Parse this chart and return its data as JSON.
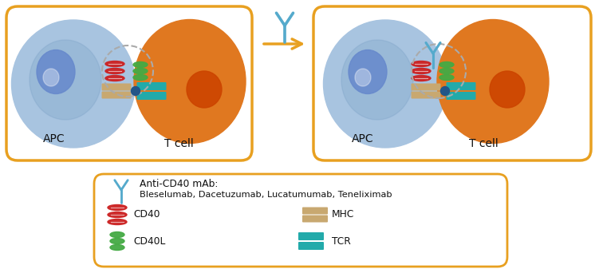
{
  "bg_color": "#ffffff",
  "orange_border": "#E8A020",
  "apc_color_light": "#a8c4e0",
  "apc_color_dark": "#7099c0",
  "tcell_color": "#e07820",
  "nucleus_apc": "#6688cc",
  "nucleus_tcell": "#cc4400",
  "cd40_color": "#cc2222",
  "cd40l_color": "#44aa44",
  "mhc_color": "#c8a870",
  "tcr_color": "#22aaaa",
  "antibody_color": "#55aacc",
  "dashed_circle": "#aaaaaa",
  "dot_color": "#225588",
  "text_color": "#111111",
  "arrow_color": "#E8A020",
  "label_apc": "APC",
  "label_tcell": "T cell",
  "legend_title1": "Anti-CD40 mAb:",
  "legend_text1": "Bleselumab, Dacetuzumab, Lucatumumab, Teneliximab",
  "legend_cd40": "CD40",
  "legend_cd40l": "CD40L",
  "legend_mhc": "MHC",
  "legend_tcr": "TCR"
}
